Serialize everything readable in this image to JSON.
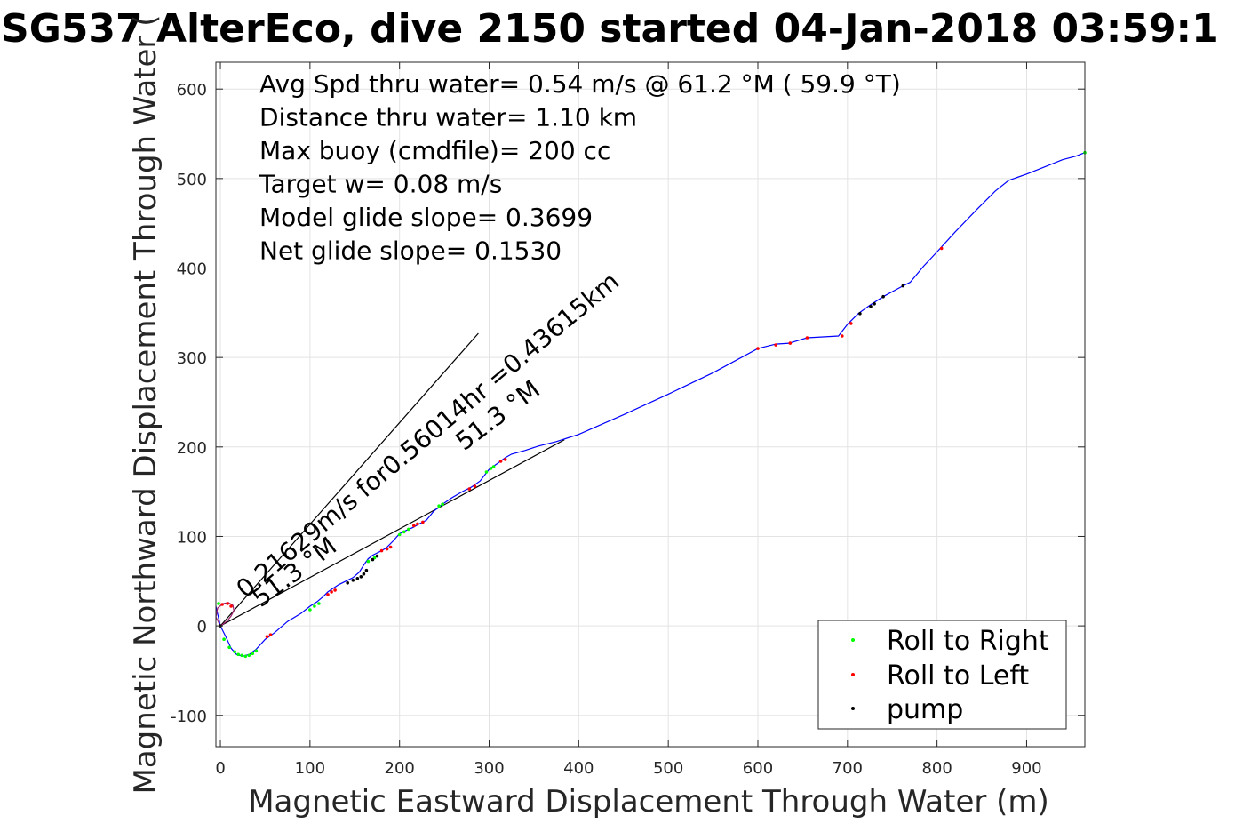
{
  "chart_data": {
    "type": "line",
    "title": "SG537 AlterEco, dive 2150 started 04-Jan-2018 03:59:1",
    "xlabel": "Magnetic Eastward Displacement Through Water (m)",
    "ylabel": "Magnetic Northward Displacement Through Water (",
    "xlim": [
      -5,
      965
    ],
    "ylim": [
      -135,
      630
    ],
    "xticks": [
      0,
      100,
      200,
      300,
      400,
      500,
      600,
      700,
      800,
      900
    ],
    "yticks": [
      -100,
      0,
      100,
      200,
      300,
      400,
      500,
      600
    ],
    "xtick_labels": [
      "0",
      "100",
      "200",
      "300",
      "400",
      "500",
      "600",
      "700",
      "800",
      "900"
    ],
    "ytick_labels": [
      "-100",
      "0",
      "100",
      "200",
      "300",
      "400",
      "500",
      "600"
    ],
    "grid": true,
    "legend_position": "bottom-right",
    "info_lines": [
      "Avg Spd thru water=  0.54 m/s @  61.2 °M ( 59.9 °T)",
      "Distance thru water=  1.10 km",
      "Max buoy (cmdfile)= 200 cc",
      "Target w= 0.08 m/s",
      "Model glide slope= 0.3699",
      "Net glide slope= 0.1530"
    ],
    "annotations": [
      {
        "text": "0.21629m/s for0.56014hr =0.43615km",
        "anchor": [
          28,
          30
        ],
        "angle_deg": -40,
        "color": "#000000"
      },
      {
        "text": "51.3 °M",
        "anchor": [
          45,
          20
        ],
        "angle_deg": -37,
        "color": "#000000"
      },
      {
        "text": "51.3 °M",
        "anchor": [
          272,
          195
        ],
        "angle_deg": -37,
        "color": "#000000"
      }
    ],
    "reference_lines": [
      {
        "name": "current-line-1",
        "x": [
          0,
          288
        ],
        "y": [
          0,
          327
        ],
        "color": "#000000"
      },
      {
        "name": "current-line-2",
        "x": [
          0,
          384
        ],
        "y": [
          0,
          208
        ],
        "color": "#000000"
      }
    ],
    "series": [
      {
        "name": "track",
        "color": "#0000ff",
        "x": [
          -5,
          0,
          6,
          12,
          18,
          25,
          32,
          40,
          50,
          60,
          75,
          90,
          100,
          108,
          115,
          120,
          126,
          132,
          140,
          148,
          155,
          160,
          165,
          170,
          178,
          185,
          193,
          200,
          208,
          215,
          222,
          230,
          238,
          248,
          258,
          270,
          280,
          290,
          300,
          310,
          318,
          325,
          340,
          355,
          375,
          400,
          450,
          500,
          550,
          600,
          620,
          635,
          655,
          690,
          700,
          712,
          726,
          740,
          762,
          770,
          785,
          800,
          820,
          845,
          865,
          880,
          900,
          920,
          940,
          955,
          965
        ],
        "y": [
          22,
          0,
          -12,
          -25,
          -32,
          -34,
          -32,
          -26,
          -15,
          -8,
          5,
          14,
          22,
          27,
          33,
          38,
          42,
          46,
          50,
          54,
          60,
          68,
          75,
          79,
          83,
          87,
          95,
          103,
          107,
          110,
          114,
          118,
          128,
          136,
          143,
          150,
          155,
          162,
          175,
          182,
          188,
          192,
          196,
          201,
          206,
          214,
          236,
          259,
          283,
          310,
          315,
          316,
          322,
          324,
          337,
          349,
          359,
          368,
          380,
          384,
          402,
          418,
          440,
          466,
          486,
          498,
          505,
          513,
          521,
          525,
          529
        ]
      },
      {
        "name": "early-loop",
        "color": "#a0206e",
        "x": [
          0,
          -5,
          -3,
          3,
          9,
          14,
          15,
          12,
          8,
          3,
          0
        ],
        "y": [
          0,
          10,
          20,
          25,
          26,
          23,
          17,
          11,
          6,
          2,
          0
        ]
      },
      {
        "name": "Roll to Right",
        "color": "#00ff00",
        "x": [
          -2,
          4,
          10,
          16,
          20,
          24,
          28,
          32,
          36,
          40,
          100,
          105,
          110,
          165,
          172,
          200,
          205,
          210,
          244,
          248,
          297,
          302,
          305,
          965
        ],
        "y": [
          25,
          -15,
          -24,
          -29,
          -32,
          -33,
          -34,
          -33,
          -31,
          -28,
          18,
          22,
          25,
          72,
          76,
          102,
          105,
          108,
          134,
          136,
          172,
          176,
          178,
          529
        ]
      },
      {
        "name": "Roll to Left",
        "color": "#ff0000",
        "x": [
          2,
          8,
          12,
          52,
          56,
          120,
          124,
          128,
          180,
          186,
          190,
          216,
          220,
          226,
          278,
          284,
          313,
          318,
          600,
          620,
          636,
          655,
          694,
          704,
          805
        ],
        "y": [
          24,
          25,
          22,
          -12,
          -10,
          35,
          38,
          40,
          84,
          86,
          88,
          112,
          114,
          116,
          153,
          156,
          184,
          186,
          310,
          314,
          316,
          322,
          324,
          338,
          422
        ]
      },
      {
        "name": "pump",
        "color": "#000000",
        "x": [
          0,
          142,
          148,
          153,
          157,
          160,
          163,
          170,
          175,
          714,
          726,
          730,
          740,
          762
        ],
        "y": [
          0,
          48,
          51,
          53,
          55,
          58,
          62,
          74,
          78,
          349,
          357,
          360,
          368,
          380
        ]
      }
    ],
    "legend": [
      {
        "label": "Roll to Right",
        "color": "#00ff00"
      },
      {
        "label": "Roll to Left",
        "color": "#ff0000"
      },
      {
        "label": "pump",
        "color": "#000000"
      }
    ]
  }
}
